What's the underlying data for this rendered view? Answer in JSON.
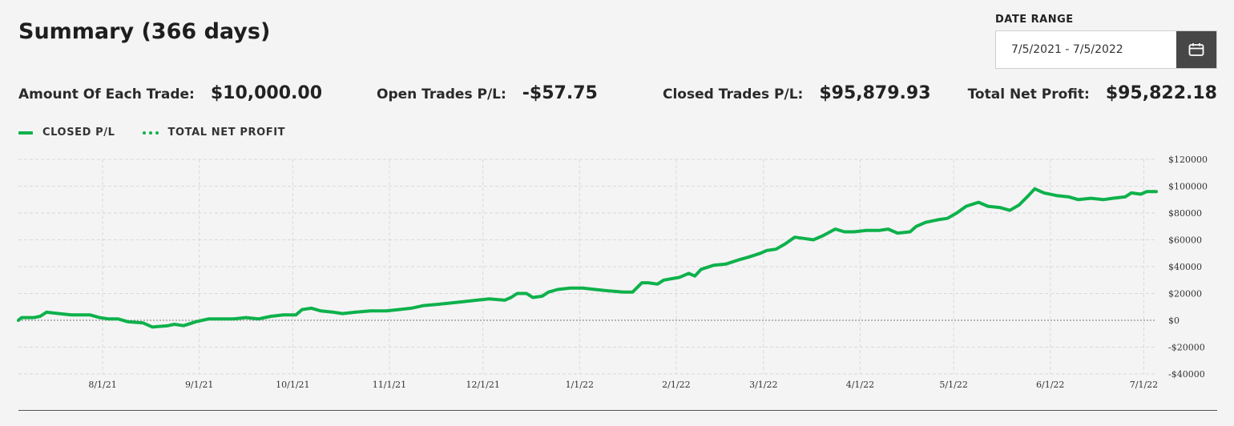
{
  "header": {
    "title": "Summary (366 days)"
  },
  "date_range": {
    "label": "DATE RANGE",
    "value": "7/5/2021 - 7/5/2022",
    "icon": "calendar-icon"
  },
  "stats": [
    {
      "label": "Amount Of Each Trade:",
      "value": "$10,000.00"
    },
    {
      "label": "Open Trades P/L:",
      "value": "-$57.75"
    },
    {
      "label": "Closed Trades P/L:",
      "value": "$95,879.93"
    },
    {
      "label": "Total Net Profit:",
      "value": "$95,822.18"
    }
  ],
  "legend": {
    "closed_label": "CLOSED P/L",
    "total_label": "TOTAL NET PROFIT"
  },
  "colors": {
    "line": "#0db14b",
    "button": "#474747",
    "grid": "#d9d9d9"
  },
  "chart_data": {
    "type": "line",
    "x_start": "2021-07-05",
    "x_end": "2022-07-05",
    "ylim": [
      -40000,
      120000
    ],
    "y_ticks": [
      120000,
      100000,
      80000,
      60000,
      40000,
      20000,
      0,
      -20000,
      -40000
    ],
    "y_tick_labels": [
      "$120000",
      "$100000",
      "$80000",
      "$60000",
      "$40000",
      "$20000",
      "$0",
      "-$20000",
      "-$40000"
    ],
    "x_ticks": [
      {
        "date": "2021-08-01",
        "label": "8/1/21"
      },
      {
        "date": "2021-09-01",
        "label": "9/1/21"
      },
      {
        "date": "2021-10-01",
        "label": "10/1/21"
      },
      {
        "date": "2021-11-01",
        "label": "11/1/21"
      },
      {
        "date": "2021-12-01",
        "label": "12/1/21"
      },
      {
        "date": "2022-01-01",
        "label": "1/1/22"
      },
      {
        "date": "2022-02-01",
        "label": "2/1/22"
      },
      {
        "date": "2022-03-01",
        "label": "3/1/22"
      },
      {
        "date": "2022-04-01",
        "label": "4/1/22"
      },
      {
        "date": "2022-05-01",
        "label": "5/1/22"
      },
      {
        "date": "2022-06-01",
        "label": "6/1/22"
      },
      {
        "date": "2022-07-01",
        "label": "7/1/22"
      }
    ],
    "grid": true,
    "legend_position": "top-left",
    "series": [
      {
        "name": "CLOSED P/L",
        "style": "solid",
        "points": [
          [
            "2021-07-05",
            0
          ],
          [
            "2021-07-06",
            2000
          ],
          [
            "2021-07-10",
            2000
          ],
          [
            "2021-07-12",
            3000
          ],
          [
            "2021-07-14",
            6000
          ],
          [
            "2021-07-18",
            5000
          ],
          [
            "2021-07-22",
            4000
          ],
          [
            "2021-07-28",
            4000
          ],
          [
            "2021-07-31",
            2000
          ],
          [
            "2021-08-03",
            1000
          ],
          [
            "2021-08-06",
            1000
          ],
          [
            "2021-08-09",
            -1000
          ],
          [
            "2021-08-14",
            -2000
          ],
          [
            "2021-08-17",
            -5000
          ],
          [
            "2021-08-22",
            -4000
          ],
          [
            "2021-08-24",
            -3000
          ],
          [
            "2021-08-27",
            -4000
          ],
          [
            "2021-08-31",
            -1000
          ],
          [
            "2021-09-04",
            1000
          ],
          [
            "2021-09-08",
            1000
          ],
          [
            "2021-09-12",
            1000
          ],
          [
            "2021-09-16",
            2000
          ],
          [
            "2021-09-20",
            1000
          ],
          [
            "2021-09-24",
            3000
          ],
          [
            "2021-09-28",
            4000
          ],
          [
            "2021-10-02",
            4000
          ],
          [
            "2021-10-04",
            8000
          ],
          [
            "2021-10-07",
            9000
          ],
          [
            "2021-10-10",
            7000
          ],
          [
            "2021-10-14",
            6000
          ],
          [
            "2021-10-17",
            5000
          ],
          [
            "2021-10-21",
            6000
          ],
          [
            "2021-10-26",
            7000
          ],
          [
            "2021-10-31",
            7000
          ],
          [
            "2021-11-04",
            8000
          ],
          [
            "2021-11-08",
            9000
          ],
          [
            "2021-11-12",
            11000
          ],
          [
            "2021-11-17",
            12000
          ],
          [
            "2021-11-21",
            13000
          ],
          [
            "2021-11-25",
            14000
          ],
          [
            "2021-11-29",
            15000
          ],
          [
            "2021-12-03",
            16000
          ],
          [
            "2021-12-08",
            15000
          ],
          [
            "2021-12-10",
            17000
          ],
          [
            "2021-12-12",
            20000
          ],
          [
            "2021-12-15",
            20000
          ],
          [
            "2021-12-17",
            17000
          ],
          [
            "2021-12-20",
            18000
          ],
          [
            "2021-12-22",
            21000
          ],
          [
            "2021-12-25",
            23000
          ],
          [
            "2021-12-29",
            24000
          ],
          [
            "2022-01-02",
            24000
          ],
          [
            "2022-01-06",
            23000
          ],
          [
            "2022-01-10",
            22000
          ],
          [
            "2022-01-15",
            21000
          ],
          [
            "2022-01-18",
            21000
          ],
          [
            "2022-01-21",
            28000
          ],
          [
            "2022-01-23",
            28000
          ],
          [
            "2022-01-26",
            27000
          ],
          [
            "2022-01-28",
            30000
          ],
          [
            "2022-02-02",
            32000
          ],
          [
            "2022-02-05",
            35000
          ],
          [
            "2022-02-07",
            33000
          ],
          [
            "2022-02-09",
            38000
          ],
          [
            "2022-02-13",
            41000
          ],
          [
            "2022-02-17",
            42000
          ],
          [
            "2022-02-21",
            45000
          ],
          [
            "2022-02-24",
            47000
          ],
          [
            "2022-02-28",
            50000
          ],
          [
            "2022-03-02",
            52000
          ],
          [
            "2022-03-05",
            53000
          ],
          [
            "2022-03-08",
            57000
          ],
          [
            "2022-03-11",
            62000
          ],
          [
            "2022-03-14",
            61000
          ],
          [
            "2022-03-17",
            60000
          ],
          [
            "2022-03-20",
            63000
          ],
          [
            "2022-03-24",
            68000
          ],
          [
            "2022-03-27",
            66000
          ],
          [
            "2022-03-30",
            66000
          ],
          [
            "2022-04-03",
            67000
          ],
          [
            "2022-04-07",
            67000
          ],
          [
            "2022-04-10",
            68000
          ],
          [
            "2022-04-13",
            65000
          ],
          [
            "2022-04-17",
            66000
          ],
          [
            "2022-04-19",
            70000
          ],
          [
            "2022-04-22",
            73000
          ],
          [
            "2022-04-26",
            75000
          ],
          [
            "2022-04-29",
            76000
          ],
          [
            "2022-05-02",
            80000
          ],
          [
            "2022-05-05",
            85000
          ],
          [
            "2022-05-09",
            88000
          ],
          [
            "2022-05-12",
            85000
          ],
          [
            "2022-05-16",
            84000
          ],
          [
            "2022-05-19",
            82000
          ],
          [
            "2022-05-22",
            86000
          ],
          [
            "2022-05-25",
            93000
          ],
          [
            "2022-05-27",
            98000
          ],
          [
            "2022-05-30",
            95000
          ],
          [
            "2022-06-03",
            93000
          ],
          [
            "2022-06-07",
            92000
          ],
          [
            "2022-06-10",
            90000
          ],
          [
            "2022-06-14",
            91000
          ],
          [
            "2022-06-18",
            90000
          ],
          [
            "2022-06-21",
            91000
          ],
          [
            "2022-06-25",
            92000
          ],
          [
            "2022-06-27",
            95000
          ],
          [
            "2022-06-30",
            94000
          ],
          [
            "2022-07-02",
            96000
          ],
          [
            "2022-07-05",
            96000
          ]
        ]
      }
    ]
  }
}
